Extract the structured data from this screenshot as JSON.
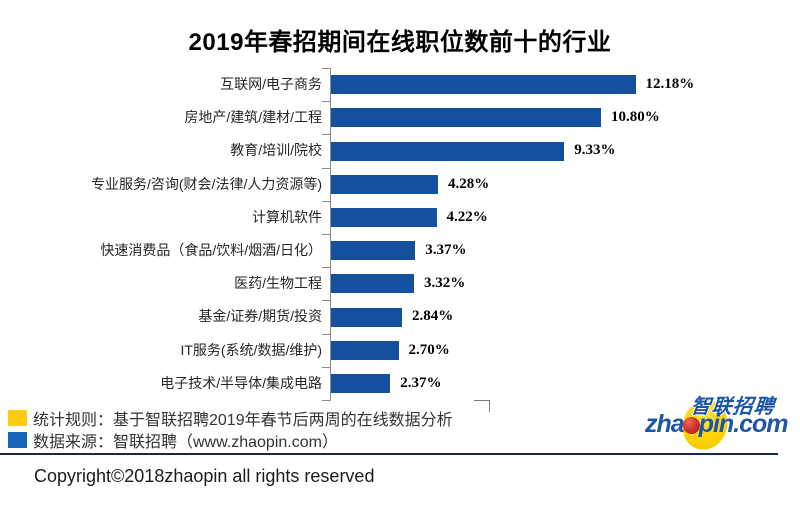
{
  "page": {
    "copyright": "Copyright©2018zhaopin all rights reserved"
  },
  "chart_data": {
    "type": "bar",
    "orientation": "horizontal",
    "title": "2019年春招期间在线职位数前十的行业",
    "categories": [
      "互联网/电子商务",
      "房地产/建筑/建材/工程",
      "教育/培训/院校",
      "专业服务/咨询(财会/法律/人力资源等)",
      "计算机软件",
      "快速消费品（食品/饮料/烟酒/日化）",
      "医药/生物工程",
      "基金/证券/期货/投资",
      "IT服务(系统/数据/维护)",
      "电子技术/半导体/集成电路"
    ],
    "values": [
      12.18,
      10.8,
      9.33,
      4.28,
      4.22,
      3.37,
      3.32,
      2.84,
      2.7,
      2.37
    ],
    "value_labels": [
      "12.18%",
      "10.80%",
      "9.33%",
      "4.28%",
      "4.22%",
      "3.37%",
      "3.32%",
      "2.84%",
      "2.70%",
      "2.37%"
    ],
    "xlim": [
      0,
      12.5
    ],
    "grid": false,
    "legend": "none",
    "bar_color": "#14509e",
    "axis_color": "#8c8c8c"
  },
  "notes": {
    "items": [
      {
        "marker_color": "#ffcc0a",
        "text": "统计规则：基于智联招聘2019年春节后两周的在线数据分析"
      },
      {
        "marker_color": "#1565b8",
        "text": "数据来源：智联招聘（www.zhaopin.com）"
      }
    ]
  },
  "logo": {
    "text_prefix": "zha",
    "text_suffix": "pin.com",
    "cn_text": "智联招聘",
    "blue": "#1d56a9",
    "yellow": "#ffd307",
    "red": "#c22b26"
  }
}
